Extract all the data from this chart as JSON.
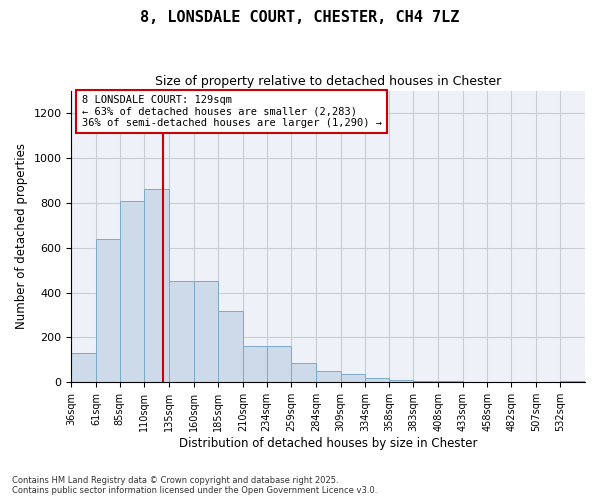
{
  "title": "8, LONSDALE COURT, CHESTER, CH4 7LZ",
  "subtitle": "Size of property relative to detached houses in Chester",
  "xlabel": "Distribution of detached houses by size in Chester",
  "ylabel": "Number of detached properties",
  "bar_edges": [
    36,
    61,
    85,
    110,
    135,
    160,
    185,
    210,
    234,
    259,
    284,
    309,
    334,
    358,
    383,
    408,
    433,
    458,
    482,
    507,
    532
  ],
  "bar_heights": [
    130,
    640,
    810,
    860,
    450,
    450,
    320,
    160,
    160,
    85,
    50,
    35,
    20,
    12,
    5,
    5,
    3,
    2,
    1,
    1,
    8
  ],
  "bar_color": "#ccdaea",
  "bar_edge_color": "#7aaac8",
  "grid_color": "#c8cdd4",
  "bg_color": "#eef2f8",
  "vline_x": 129,
  "vline_color": "#cc0000",
  "annotation_text": "8 LONSDALE COURT: 129sqm\n← 63% of detached houses are smaller (2,283)\n36% of semi-detached houses are larger (1,290) →",
  "annotation_box_color": "#cc0000",
  "ylim": [
    0,
    1300
  ],
  "yticks": [
    0,
    200,
    400,
    600,
    800,
    1000,
    1200
  ],
  "footnote1": "Contains HM Land Registry data © Crown copyright and database right 2025.",
  "footnote2": "Contains public sector information licensed under the Open Government Licence v3.0."
}
